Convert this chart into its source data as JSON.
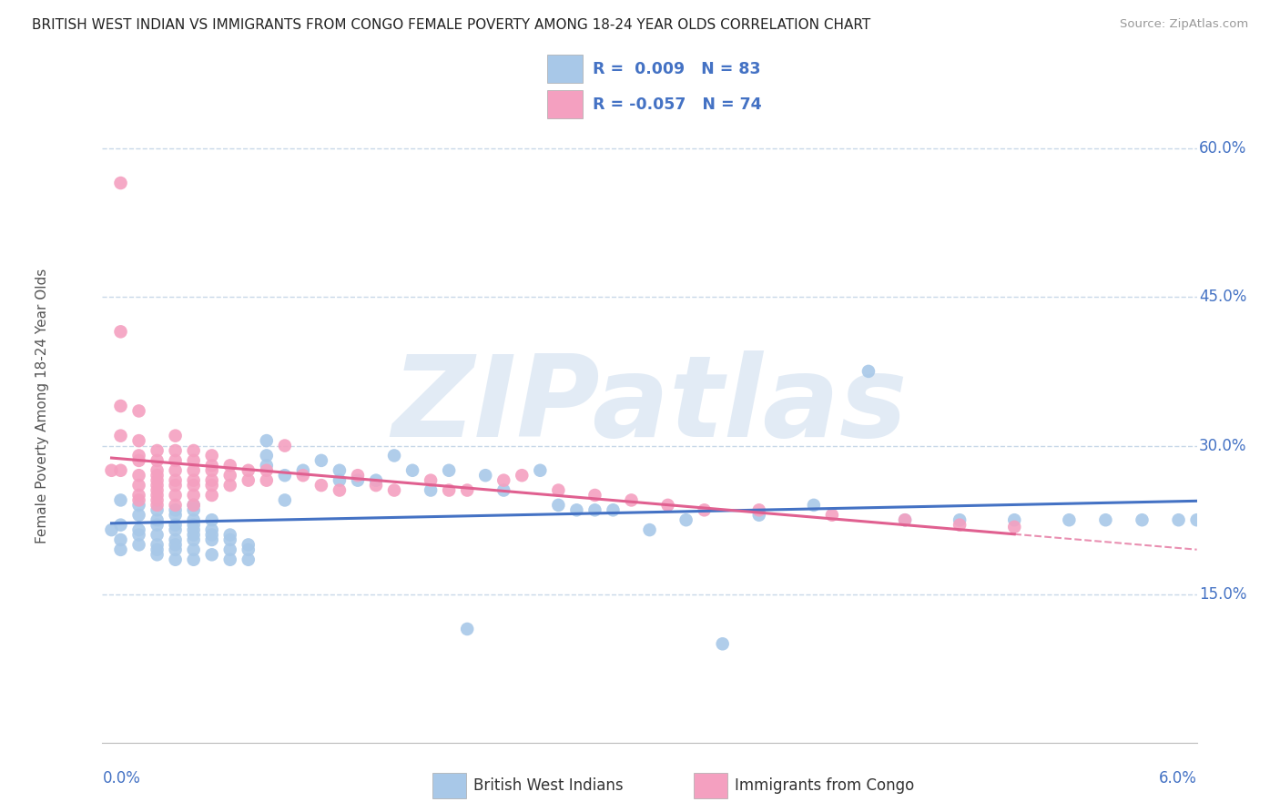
{
  "title": "BRITISH WEST INDIAN VS IMMIGRANTS FROM CONGO FEMALE POVERTY AMONG 18-24 YEAR OLDS CORRELATION CHART",
  "source": "Source: ZipAtlas.com",
  "ylabel": "Female Poverty Among 18-24 Year Olds",
  "ytick_labels": [
    "15.0%",
    "30.0%",
    "45.0%",
    "60.0%"
  ],
  "ytick_values": [
    0.15,
    0.3,
    0.45,
    0.6
  ],
  "xlim": [
    0.0,
    0.06
  ],
  "ylim": [
    0.0,
    0.68
  ],
  "series1_name": "British West Indians",
  "series1_R": "0.009",
  "series1_N": "83",
  "series1_color": "#a8c8e8",
  "series1_line_color": "#4472c4",
  "series2_name": "Immigrants from Congo",
  "series2_R": "-0.057",
  "series2_N": "74",
  "series2_color": "#f4a0c0",
  "series2_line_color": "#e06090",
  "axis_label_color": "#4472c4",
  "watermark": "ZIPatlas",
  "watermark_color": "#dde8f4",
  "background_color": "#ffffff",
  "grid_color": "#c8d8e8",
  "series1_x": [
    0.0005,
    0.001,
    0.001,
    0.001,
    0.001,
    0.002,
    0.002,
    0.002,
    0.002,
    0.002,
    0.003,
    0.003,
    0.003,
    0.003,
    0.003,
    0.003,
    0.003,
    0.004,
    0.004,
    0.004,
    0.004,
    0.004,
    0.004,
    0.004,
    0.004,
    0.005,
    0.005,
    0.005,
    0.005,
    0.005,
    0.005,
    0.005,
    0.005,
    0.005,
    0.006,
    0.006,
    0.006,
    0.006,
    0.006,
    0.007,
    0.007,
    0.007,
    0.007,
    0.008,
    0.008,
    0.008,
    0.009,
    0.009,
    0.009,
    0.01,
    0.01,
    0.011,
    0.012,
    0.013,
    0.013,
    0.014,
    0.015,
    0.016,
    0.017,
    0.018,
    0.019,
    0.02,
    0.021,
    0.022,
    0.024,
    0.025,
    0.026,
    0.027,
    0.028,
    0.03,
    0.032,
    0.034,
    0.036,
    0.039,
    0.042,
    0.044,
    0.047,
    0.05,
    0.053,
    0.055,
    0.057,
    0.059,
    0.06
  ],
  "series1_y": [
    0.215,
    0.245,
    0.22,
    0.205,
    0.195,
    0.23,
    0.24,
    0.215,
    0.21,
    0.2,
    0.22,
    0.235,
    0.225,
    0.21,
    0.2,
    0.195,
    0.19,
    0.23,
    0.235,
    0.22,
    0.215,
    0.205,
    0.2,
    0.195,
    0.185,
    0.24,
    0.235,
    0.225,
    0.22,
    0.215,
    0.21,
    0.205,
    0.195,
    0.185,
    0.225,
    0.215,
    0.21,
    0.205,
    0.19,
    0.21,
    0.205,
    0.195,
    0.185,
    0.2,
    0.195,
    0.185,
    0.305,
    0.29,
    0.28,
    0.27,
    0.245,
    0.275,
    0.285,
    0.275,
    0.265,
    0.265,
    0.265,
    0.29,
    0.275,
    0.255,
    0.275,
    0.115,
    0.27,
    0.255,
    0.275,
    0.24,
    0.235,
    0.235,
    0.235,
    0.215,
    0.225,
    0.1,
    0.23,
    0.24,
    0.375,
    0.225,
    0.225,
    0.225,
    0.225,
    0.225,
    0.225,
    0.225,
    0.225
  ],
  "series2_x": [
    0.0005,
    0.001,
    0.001,
    0.001,
    0.001,
    0.001,
    0.002,
    0.002,
    0.002,
    0.002,
    0.002,
    0.002,
    0.002,
    0.002,
    0.003,
    0.003,
    0.003,
    0.003,
    0.003,
    0.003,
    0.003,
    0.003,
    0.003,
    0.003,
    0.004,
    0.004,
    0.004,
    0.004,
    0.004,
    0.004,
    0.004,
    0.004,
    0.005,
    0.005,
    0.005,
    0.005,
    0.005,
    0.005,
    0.005,
    0.006,
    0.006,
    0.006,
    0.006,
    0.006,
    0.006,
    0.007,
    0.007,
    0.007,
    0.008,
    0.008,
    0.009,
    0.009,
    0.01,
    0.011,
    0.012,
    0.013,
    0.014,
    0.015,
    0.016,
    0.018,
    0.019,
    0.02,
    0.022,
    0.023,
    0.025,
    0.027,
    0.029,
    0.031,
    0.033,
    0.036,
    0.04,
    0.044,
    0.047,
    0.05
  ],
  "series2_y": [
    0.275,
    0.565,
    0.415,
    0.34,
    0.31,
    0.275,
    0.335,
    0.305,
    0.29,
    0.285,
    0.27,
    0.26,
    0.25,
    0.245,
    0.295,
    0.285,
    0.275,
    0.27,
    0.265,
    0.26,
    0.255,
    0.25,
    0.245,
    0.24,
    0.31,
    0.295,
    0.285,
    0.275,
    0.265,
    0.26,
    0.25,
    0.24,
    0.295,
    0.285,
    0.275,
    0.265,
    0.26,
    0.25,
    0.24,
    0.29,
    0.28,
    0.275,
    0.265,
    0.26,
    0.25,
    0.28,
    0.27,
    0.26,
    0.275,
    0.265,
    0.275,
    0.265,
    0.3,
    0.27,
    0.26,
    0.255,
    0.27,
    0.26,
    0.255,
    0.265,
    0.255,
    0.255,
    0.265,
    0.27,
    0.255,
    0.25,
    0.245,
    0.24,
    0.235,
    0.235,
    0.23,
    0.225,
    0.22,
    0.218
  ]
}
